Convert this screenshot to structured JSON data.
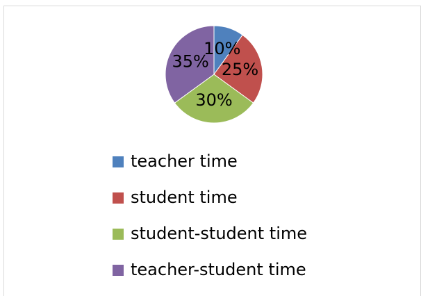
{
  "chart_data": {
    "type": "pie",
    "categories": [
      "teacher time",
      "student time",
      "student-student time",
      "teacher-student time"
    ],
    "values": [
      10,
      25,
      30,
      35
    ],
    "value_labels": [
      "10%",
      "25%",
      "30%",
      "35%"
    ],
    "colors": [
      "#4f81bd",
      "#c0504d",
      "#9bbb59",
      "#8064a2"
    ]
  }
}
